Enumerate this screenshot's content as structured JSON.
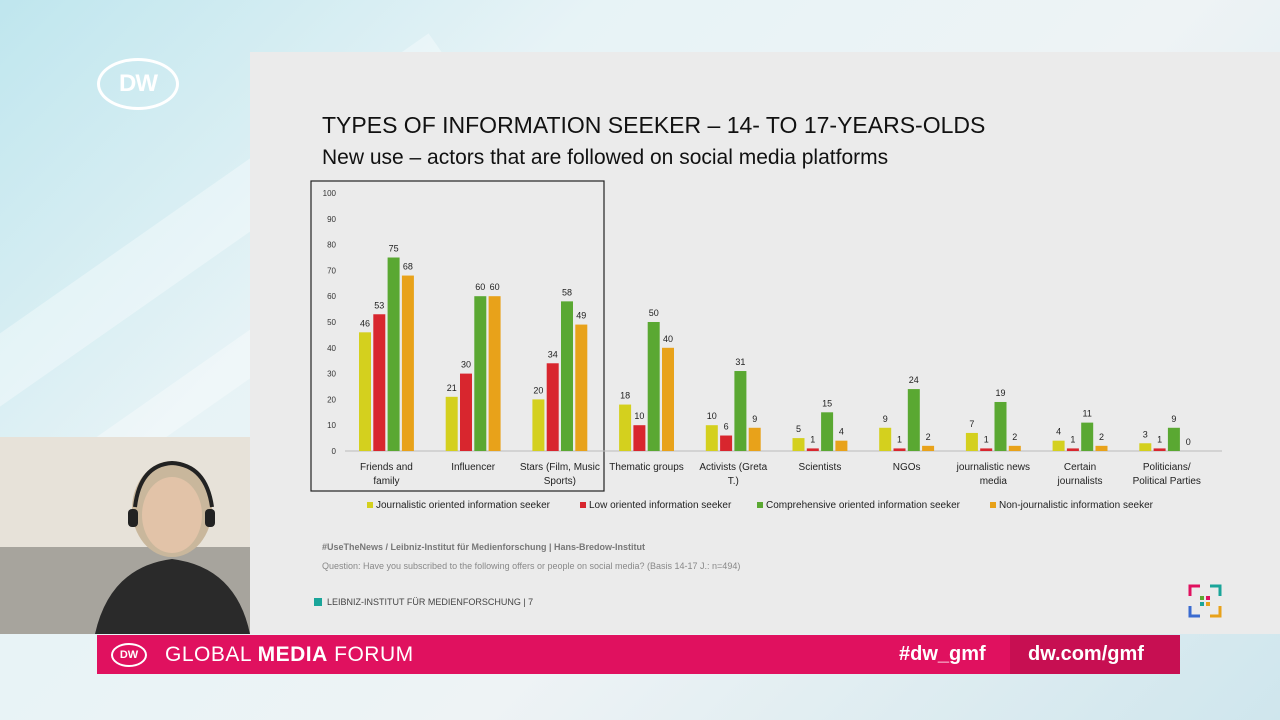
{
  "broadcast": {
    "logo_text": "DW",
    "banner_logo_text": "DW",
    "forum_prefix": "GLOBAL ",
    "forum_bold": "MEDIA",
    "forum_suffix": " FORUM",
    "hashtag": "#dw_gmf",
    "url": "dw.com/gmf",
    "brand_color": "#e0115f"
  },
  "slide": {
    "title": "TYPES OF INFORMATION SEEKER – 14- TO 17-YEARS-OLDS",
    "subtitle": "New use – actors that are followed on social media platforms",
    "source": "#UseTheNews / Leibniz-Institut für Medienforschung | Hans-Bredow-Institut",
    "question": "Question: Have you subscribed to the following offers or people on social media? (Basis 14-17 J.: n=494)",
    "institute": "LEIBNIZ-INSTITUT FÜR MEDIENFORSCHUNG | 7",
    "institute_color": "#1aa59a"
  },
  "chart_data": {
    "type": "bar",
    "categories": [
      [
        "Friends and",
        "family"
      ],
      [
        "Influencer"
      ],
      [
        "Stars (Film, Music",
        "Sports)"
      ],
      [
        "Thematic groups"
      ],
      [
        "Activists (Greta",
        "T.)"
      ],
      [
        "Scientists"
      ],
      [
        "NGOs"
      ],
      [
        "journalistic news",
        "media"
      ],
      [
        "Certain",
        "journalists"
      ],
      [
        "Politicians/",
        "Political Parties"
      ]
    ],
    "series": [
      {
        "name": "Journalistic oriented information seeker",
        "color": "#d4d01e",
        "values": [
          46,
          21,
          20,
          18,
          10,
          5,
          9,
          7,
          4,
          3
        ]
      },
      {
        "name": "Low oriented information seeker",
        "color": "#d8262e",
        "values": [
          53,
          30,
          34,
          10,
          6,
          1,
          1,
          1,
          1,
          1
        ]
      },
      {
        "name": "Comprehensive oriented information seeker",
        "color": "#5aa832",
        "values": [
          75,
          60,
          58,
          50,
          31,
          15,
          24,
          19,
          11,
          9
        ]
      },
      {
        "name": "Non-journalistic information seeker",
        "color": "#e8a21a",
        "values": [
          68,
          60,
          49,
          40,
          9,
          4,
          2,
          2,
          2,
          0
        ]
      }
    ],
    "yticks": [
      0,
      10,
      20,
      30,
      40,
      50,
      60,
      70,
      80,
      90,
      100
    ],
    "ylim": [
      0,
      100
    ],
    "highlight_box": "first three categories",
    "legend_position": "bottom",
    "grid": false
  }
}
